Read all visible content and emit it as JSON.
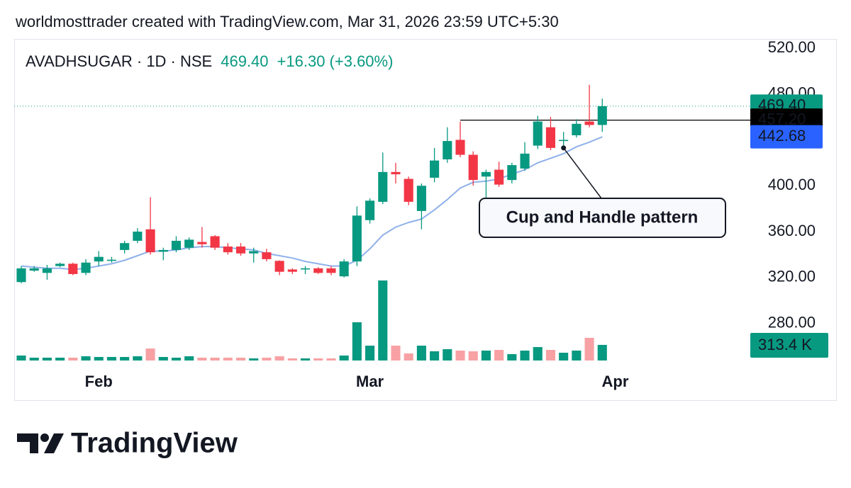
{
  "header": {
    "text": "worldmosttrader created with TradingView.com, Mar 31, 2026 23:59 UTC+5:30"
  },
  "footer": {
    "logo_text": "TradingView"
  },
  "chart_data": {
    "type": "candlestick",
    "title": "AVADHSUGAR · 1D · NSE",
    "change": "+16.30 (+3.60%)",
    "x": [
      0,
      1,
      2,
      3,
      4,
      5,
      6,
      7,
      8,
      9,
      10,
      11,
      12,
      13,
      14,
      15,
      16,
      17,
      18,
      19,
      20,
      21,
      22,
      23,
      24,
      25,
      26,
      27,
      28,
      29,
      30,
      31,
      32,
      33,
      34,
      35,
      36,
      37,
      38,
      39,
      40,
      41,
      42,
      43,
      44,
      45
    ],
    "xlim": [
      -0.55,
      56.3
    ],
    "xticks": [
      {
        "value": 6,
        "label": "Feb"
      },
      {
        "value": 27,
        "label": "Mar"
      },
      {
        "value": 46,
        "label": "Apr"
      }
    ],
    "open": [
      316,
      326,
      324,
      330,
      332,
      324,
      334,
      334.5,
      344,
      352,
      362,
      342.5,
      344,
      346,
      351,
      356,
      347,
      347,
      341,
      342,
      334.5,
      327,
      327,
      328,
      328,
      321,
      334,
      370,
      386,
      412,
      406,
      378,
      407,
      423,
      440,
      427,
      408,
      414,
      405,
      415,
      435,
      451,
      439,
      444,
      456,
      453
    ],
    "high": [
      330,
      330,
      331,
      333,
      333,
      336,
      343,
      338,
      352,
      363,
      390,
      346,
      356,
      355,
      364,
      357,
      350,
      350,
      346,
      345,
      335,
      328,
      330,
      329,
      330,
      336,
      382,
      389,
      429,
      420,
      408,
      402,
      433,
      451,
      456,
      430,
      414,
      421,
      420,
      438,
      461,
      460,
      447,
      458,
      488,
      476
    ],
    "low": [
      315,
      325,
      318,
      329,
      322,
      322,
      330,
      333,
      341,
      350,
      340,
      335,
      342,
      344,
      346,
      344,
      340,
      339,
      333,
      334,
      322,
      323,
      323,
      323,
      322,
      320,
      330,
      367,
      384,
      402,
      383,
      362,
      403,
      420,
      425,
      400,
      388,
      399,
      402,
      413,
      432,
      431,
      433,
      442,
      451,
      447
    ],
    "close": [
      328,
      328,
      328,
      332,
      323,
      333,
      338,
      335.5,
      350,
      360,
      342,
      344,
      352,
      353,
      349,
      346,
      342,
      341,
      343,
      336,
      325,
      325,
      328,
      324,
      324,
      334,
      374,
      387,
      412,
      410,
      386,
      400,
      422,
      439,
      427,
      405,
      412,
      401,
      418,
      428,
      456,
      433,
      440,
      454,
      453,
      469.4
    ],
    "up_color": "#089981",
    "down_color": "#f23645",
    "ylim": [
      247,
      528
    ],
    "yticks": [
      {
        "value": 280,
        "label": "280.00"
      },
      {
        "value": 320,
        "label": "320.00"
      },
      {
        "value": 360,
        "label": "360.00"
      },
      {
        "value": 400,
        "label": "400.00"
      },
      {
        "value": 480,
        "label": "480.00"
      },
      {
        "value": 520,
        "label": "520.00"
      }
    ],
    "last_price": {
      "value": 469.4,
      "label": "469.40",
      "color": "#089981"
    },
    "hline": {
      "value": 457.2,
      "label": "457.20",
      "from": 34,
      "color": "#000000"
    },
    "ma": {
      "color": "#8fb1ea",
      "label_color": "#2962ff",
      "label": "442.68",
      "values": [
        330,
        329,
        328,
        328,
        327,
        328,
        330,
        332,
        335,
        339,
        343,
        343,
        344,
        346,
        347,
        347,
        346,
        345,
        344,
        341,
        339,
        337,
        334,
        332,
        330,
        330,
        335,
        345,
        357,
        364,
        368,
        371,
        379,
        388,
        398,
        403,
        404,
        406,
        410,
        414,
        420,
        424,
        428,
        434,
        438,
        442.68
      ]
    },
    "volume": {
      "up_color": "#089981",
      "down_color": "#f7a1a4",
      "label": "313.4 K",
      "values": [
        100,
        57,
        57,
        57,
        57,
        85,
        71,
        71,
        71,
        85,
        240,
        71,
        57,
        85,
        57,
        57,
        57,
        57,
        43,
        57,
        85,
        43,
        43,
        43,
        43,
        100,
        767,
        298,
        1605,
        298,
        142,
        298,
        185,
        227,
        199,
        185,
        199,
        213,
        128,
        199,
        270,
        213,
        156,
        199,
        455,
        313.4
      ]
    },
    "annotation": {
      "text": "Cup and Handle pattern",
      "x": 42,
      "y": 433
    }
  }
}
